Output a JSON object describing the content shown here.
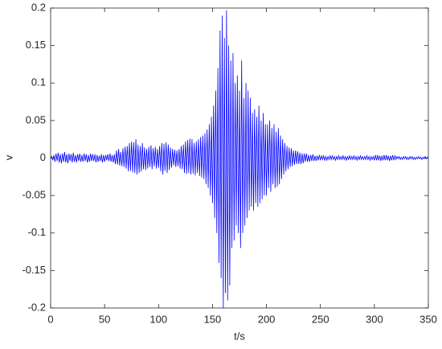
{
  "chart_data": {
    "type": "line",
    "xlabel": "t/s",
    "ylabel": "v",
    "xlim": [
      0,
      350
    ],
    "xticks": [
      0,
      50,
      100,
      150,
      200,
      250,
      300,
      350
    ],
    "ylim": [
      -0.2,
      0.2
    ],
    "yticks": [
      -0.2,
      -0.15,
      -0.1,
      -0.05,
      0,
      0.05,
      0.1,
      0.15,
      0.2
    ],
    "grid": false,
    "x": [
      0,
      1,
      2,
      3,
      4,
      5,
      6,
      7,
      8,
      9,
      10,
      11,
      12,
      13,
      14,
      15,
      16,
      17,
      18,
      19,
      20,
      21,
      22,
      23,
      24,
      25,
      26,
      27,
      28,
      29,
      30,
      31,
      32,
      33,
      34,
      35,
      36,
      37,
      38,
      39,
      40,
      41,
      42,
      43,
      44,
      45,
      46,
      47,
      48,
      49,
      50,
      51,
      52,
      53,
      54,
      55,
      56,
      57,
      58,
      59,
      60,
      61,
      62,
      63,
      64,
      65,
      66,
      67,
      68,
      69,
      70,
      71,
      72,
      73,
      74,
      75,
      76,
      77,
      78,
      79,
      80,
      81,
      82,
      83,
      84,
      85,
      86,
      87,
      88,
      89,
      90,
      91,
      92,
      93,
      94,
      95,
      96,
      97,
      98,
      99,
      100,
      101,
      102,
      103,
      104,
      105,
      106,
      107,
      108,
      109,
      110,
      111,
      112,
      113,
      114,
      115,
      116,
      117,
      118,
      119,
      120,
      121,
      122,
      123,
      124,
      125,
      126,
      127,
      128,
      129,
      130,
      131,
      132,
      133,
      134,
      135,
      136,
      137,
      138,
      139,
      140,
      141,
      142,
      143,
      144,
      145,
      146,
      147,
      148,
      149,
      150,
      151,
      152,
      153,
      154,
      155,
      156,
      157,
      158,
      159,
      160,
      161,
      162,
      163,
      164,
      165,
      166,
      167,
      168,
      169,
      170,
      171,
      172,
      173,
      174,
      175,
      176,
      177,
      178,
      179,
      180,
      181,
      182,
      183,
      184,
      185,
      186,
      187,
      188,
      189,
      190,
      191,
      192,
      193,
      194,
      195,
      196,
      197,
      198,
      199,
      200,
      201,
      202,
      203,
      204,
      205,
      206,
      207,
      208,
      209,
      210,
      211,
      212,
      213,
      214,
      215,
      216,
      217,
      218,
      219,
      220,
      221,
      222,
      223,
      224,
      225,
      226,
      227,
      228,
      229,
      230,
      231,
      232,
      233,
      234,
      235,
      236,
      237,
      238,
      239,
      240,
      241,
      242,
      243,
      244,
      245,
      246,
      247,
      248,
      249,
      250,
      251,
      252,
      253,
      254,
      255,
      256,
      257,
      258,
      259,
      260,
      261,
      262,
      263,
      264,
      265,
      266,
      267,
      268,
      269,
      270,
      271,
      272,
      273,
      274,
      275,
      276,
      277,
      278,
      279,
      280,
      281,
      282,
      283,
      284,
      285,
      286,
      287,
      288,
      289,
      290,
      291,
      292,
      293,
      294,
      295,
      296,
      297,
      298,
      299,
      300,
      301,
      302,
      303,
      304,
      305,
      306,
      307,
      308,
      309,
      310,
      311,
      312,
      313,
      314,
      315,
      316,
      317,
      318,
      319,
      320,
      321,
      322,
      323,
      324,
      325,
      326,
      327,
      328,
      329,
      330,
      331,
      332,
      333,
      334,
      335,
      336,
      337,
      338,
      339,
      340,
      341,
      342,
      343,
      344,
      345,
      346,
      347,
      348,
      349,
      350
    ],
    "series": [
      {
        "color": "#0000ff",
        "values": [
          0,
          0.002,
          -0.003,
          0.004,
          -0.005,
          0.006,
          -0.004,
          0.007,
          -0.006,
          0.005,
          -0.007,
          0.006,
          -0.005,
          0.008,
          -0.006,
          0.005,
          -0.007,
          0.006,
          -0.004,
          0.005,
          -0.006,
          0.007,
          -0.005,
          0.004,
          -0.006,
          0.005,
          -0.004,
          0.006,
          -0.005,
          0.004,
          -0.005,
          0.006,
          -0.004,
          0.005,
          -0.006,
          0.004,
          -0.005,
          0.006,
          -0.004,
          0.005,
          -0.004,
          0.005,
          -0.006,
          0.004,
          -0.005,
          0.003,
          -0.004,
          0.005,
          -0.006,
          0.004,
          -0.005,
          0.004,
          -0.003,
          0.005,
          -0.004,
          0.006,
          -0.005,
          0.004,
          -0.006,
          0.005,
          -0.008,
          0.01,
          -0.009,
          0.012,
          -0.01,
          0.008,
          -0.011,
          0.013,
          -0.012,
          0.015,
          -0.014,
          0.016,
          -0.018,
          0.02,
          -0.017,
          0.022,
          -0.019,
          0.021,
          -0.02,
          0.025,
          -0.022,
          0.018,
          -0.02,
          0.016,
          -0.018,
          0.02,
          -0.015,
          0.014,
          -0.016,
          0.012,
          -0.014,
          0.015,
          -0.012,
          0.017,
          -0.015,
          0.013,
          -0.011,
          0.015,
          -0.014,
          0.012,
          -0.013,
          0.016,
          -0.018,
          0.02,
          -0.022,
          0.019,
          -0.017,
          0.021,
          -0.02,
          0.018,
          -0.016,
          0.014,
          -0.013,
          0.012,
          -0.01,
          0.011,
          -0.012,
          0.01,
          -0.011,
          0.012,
          -0.014,
          0.016,
          -0.015,
          0.018,
          -0.02,
          0.022,
          -0.021,
          0.024,
          -0.02,
          0.026,
          -0.022,
          0.025,
          -0.021,
          0.02,
          -0.023,
          0.022,
          -0.02,
          0.025,
          -0.024,
          0.028,
          -0.026,
          0.03,
          -0.028,
          0.033,
          -0.035,
          0.038,
          -0.04,
          0.045,
          -0.05,
          0.055,
          -0.06,
          0.07,
          -0.08,
          0.09,
          -0.1,
          0.12,
          -0.14,
          0.17,
          -0.16,
          0.19,
          -0.2,
          0.16,
          -0.18,
          0.197,
          -0.19,
          0.15,
          -0.17,
          0.13,
          -0.12,
          0.14,
          -0.11,
          0.1,
          -0.09,
          0.11,
          -0.1,
          0.09,
          -0.12,
          0.13,
          -0.1,
          0.08,
          -0.09,
          0.1,
          -0.08,
          0.09,
          -0.07,
          0.08,
          -0.065,
          0.06,
          -0.07,
          0.065,
          -0.06,
          0.055,
          -0.065,
          0.07,
          -0.06,
          0.05,
          -0.055,
          0.06,
          -0.05,
          0.045,
          -0.05,
          0.045,
          -0.04,
          0.05,
          -0.045,
          0.04,
          -0.035,
          0.045,
          -0.04,
          0.035,
          -0.038,
          0.04,
          -0.035,
          0.03,
          -0.028,
          0.025,
          -0.022,
          0.02,
          -0.018,
          0.016,
          -0.015,
          0.014,
          -0.012,
          0.013,
          -0.011,
          0.01,
          -0.009,
          0.01,
          -0.008,
          0.009,
          -0.008,
          0.007,
          -0.008,
          0.006,
          -0.007,
          0.006,
          -0.005,
          0.006,
          -0.005,
          0.004,
          -0.005,
          0.004,
          -0.004,
          0.005,
          -0.004,
          0.003,
          -0.004,
          0.003,
          -0.003,
          0.004,
          -0.003,
          0.003,
          -0.002,
          0.003,
          -0.003,
          0.002,
          -0.003,
          0.002,
          -0.002,
          0.003,
          -0.002,
          0.003,
          -0.002,
          0.002,
          -0.003,
          0.002,
          -0.002,
          0.003,
          -0.002,
          0.002,
          -0.002,
          0.003,
          -0.002,
          0.002,
          -0.003,
          0.002,
          -0.002,
          0.003,
          -0.002,
          0.002,
          -0.002,
          0.003,
          -0.002,
          0.002,
          -0.003,
          0.002,
          -0.002,
          0.003,
          -0.002,
          0.002,
          -0.002,
          0.002,
          -0.002,
          0.003,
          -0.002,
          0.002,
          -0.003,
          0.002,
          -0.002,
          0.002,
          -0.003,
          0.004,
          -0.003,
          0.004,
          -0.003,
          0.003,
          -0.004,
          0.003,
          -0.003,
          0.004,
          -0.003,
          0.004,
          -0.003,
          0.003,
          -0.004,
          0.003,
          -0.003,
          0.004,
          -0.003,
          0.003,
          -0.002,
          0.002,
          -0.001,
          0.002,
          -0.002,
          0.001,
          -0.002,
          0.002,
          -0.001,
          0.002,
          -0.002,
          0.001,
          -0.002,
          0.002,
          -0.001,
          0.002,
          -0.002,
          0.001,
          -0.002,
          0.001,
          -0.001,
          0.002,
          -0.001,
          0.001,
          -0.002,
          0.001,
          -0.001,
          0.002,
          -0.001,
          0.001,
          0
        ]
      }
    ]
  }
}
